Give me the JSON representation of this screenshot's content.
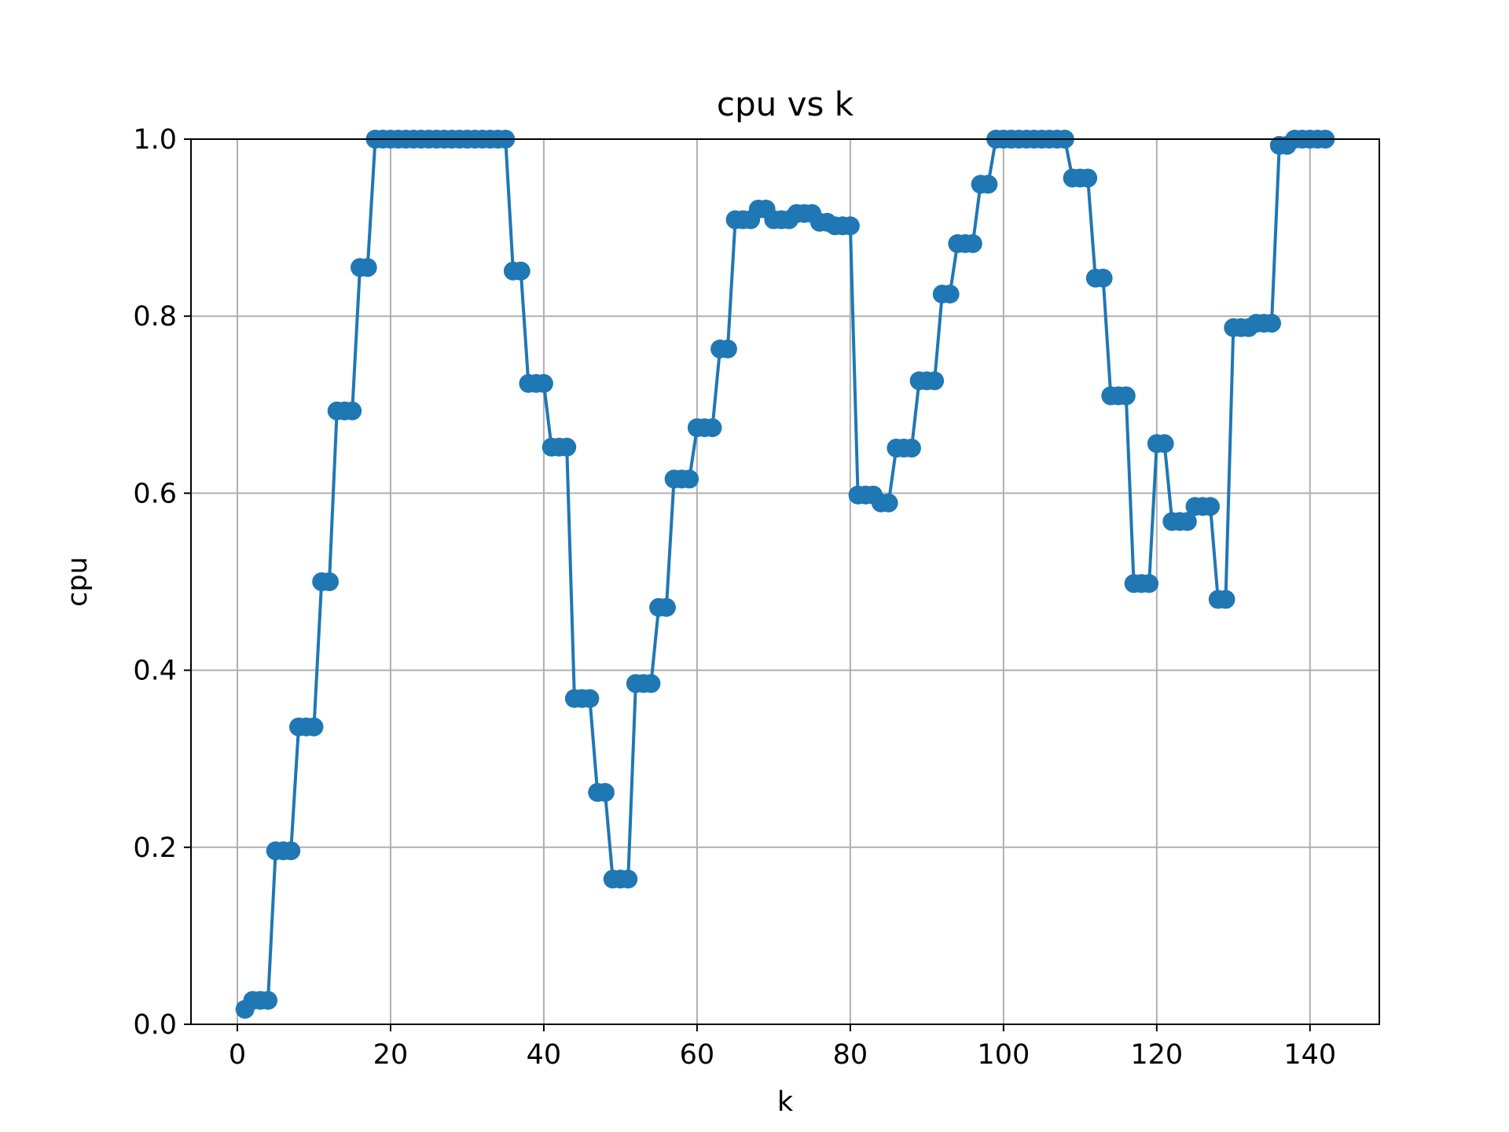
{
  "chart_data": {
    "type": "line",
    "title": "cpu vs k",
    "xlabel": "k",
    "ylabel": "cpu",
    "xlim": [
      -6.05,
      149.05
    ],
    "ylim": [
      0.0,
      1.0
    ],
    "grid": true,
    "xticks": [
      0,
      20,
      40,
      60,
      80,
      100,
      120,
      140
    ],
    "yticks": [
      0.0,
      0.2,
      0.4,
      0.6,
      0.8,
      1.0
    ],
    "xtick_labels": [
      "0",
      "20",
      "40",
      "60",
      "80",
      "100",
      "120",
      "140"
    ],
    "ytick_labels": [
      "0.0",
      "0.2",
      "0.4",
      "0.6",
      "0.8",
      "1.0"
    ],
    "colors": {
      "series": "#1f77b4",
      "grid": "#b0b0b0",
      "axes": "#000000"
    },
    "series": [
      {
        "marker": "circle",
        "x": [
          1,
          2,
          3,
          4,
          5,
          6,
          7,
          8,
          9,
          10,
          11,
          12,
          13,
          14,
          15,
          16,
          17,
          18,
          19,
          20,
          21,
          22,
          23,
          24,
          25,
          26,
          27,
          28,
          29,
          30,
          31,
          32,
          33,
          34,
          35,
          36,
          37,
          38,
          39,
          40,
          41,
          42,
          43,
          44,
          45,
          46,
          47,
          48,
          49,
          50,
          51,
          52,
          53,
          54,
          55,
          56,
          57,
          58,
          59,
          60,
          61,
          62,
          63,
          64,
          65,
          66,
          67,
          68,
          69,
          70,
          71,
          72,
          73,
          74,
          75,
          76,
          77,
          78,
          79,
          80,
          81,
          82,
          83,
          84,
          85,
          86,
          87,
          88,
          89,
          90,
          91,
          92,
          93,
          94,
          95,
          96,
          97,
          98,
          99,
          100,
          101,
          102,
          103,
          104,
          105,
          106,
          107,
          108,
          109,
          110,
          111,
          112,
          113,
          114,
          115,
          116,
          117,
          118,
          119,
          120,
          121,
          122,
          123,
          124,
          125,
          126,
          127,
          128,
          129,
          130,
          131,
          132,
          133,
          134,
          135,
          136,
          137,
          138,
          139,
          140,
          141,
          142
        ],
        "y": [
          0.017,
          0.027,
          0.027,
          0.027,
          0.196,
          0.196,
          0.196,
          0.336,
          0.336,
          0.336,
          0.5,
          0.5,
          0.693,
          0.693,
          0.693,
          0.855,
          0.855,
          1.0,
          1.0,
          1.0,
          1.0,
          1.0,
          1.0,
          1.0,
          1.0,
          1.0,
          1.0,
          1.0,
          1.0,
          1.0,
          1.0,
          1.0,
          1.0,
          1.0,
          1.0,
          0.851,
          0.851,
          0.724,
          0.724,
          0.724,
          0.652,
          0.652,
          0.652,
          0.368,
          0.368,
          0.368,
          0.262,
          0.262,
          0.164,
          0.164,
          0.164,
          0.385,
          0.385,
          0.385,
          0.471,
          0.471,
          0.616,
          0.616,
          0.616,
          0.674,
          0.674,
          0.674,
          0.763,
          0.763,
          0.909,
          0.909,
          0.909,
          0.921,
          0.921,
          0.909,
          0.909,
          0.909,
          0.916,
          0.916,
          0.916,
          0.906,
          0.906,
          0.902,
          0.902,
          0.902,
          0.598,
          0.598,
          0.598,
          0.589,
          0.589,
          0.651,
          0.651,
          0.651,
          0.727,
          0.727,
          0.727,
          0.825,
          0.825,
          0.882,
          0.882,
          0.882,
          0.949,
          0.949,
          1.0,
          1.0,
          1.0,
          1.0,
          1.0,
          1.0,
          1.0,
          1.0,
          1.0,
          1.0,
          0.956,
          0.956,
          0.956,
          0.843,
          0.843,
          0.71,
          0.71,
          0.71,
          0.498,
          0.498,
          0.498,
          0.656,
          0.656,
          0.568,
          0.568,
          0.568,
          0.585,
          0.585,
          0.585,
          0.48,
          0.48,
          0.787,
          0.787,
          0.787,
          0.792,
          0.792,
          0.792,
          0.993,
          0.993,
          1.0,
          1.0,
          1.0,
          1.0,
          1.0
        ]
      }
    ]
  }
}
